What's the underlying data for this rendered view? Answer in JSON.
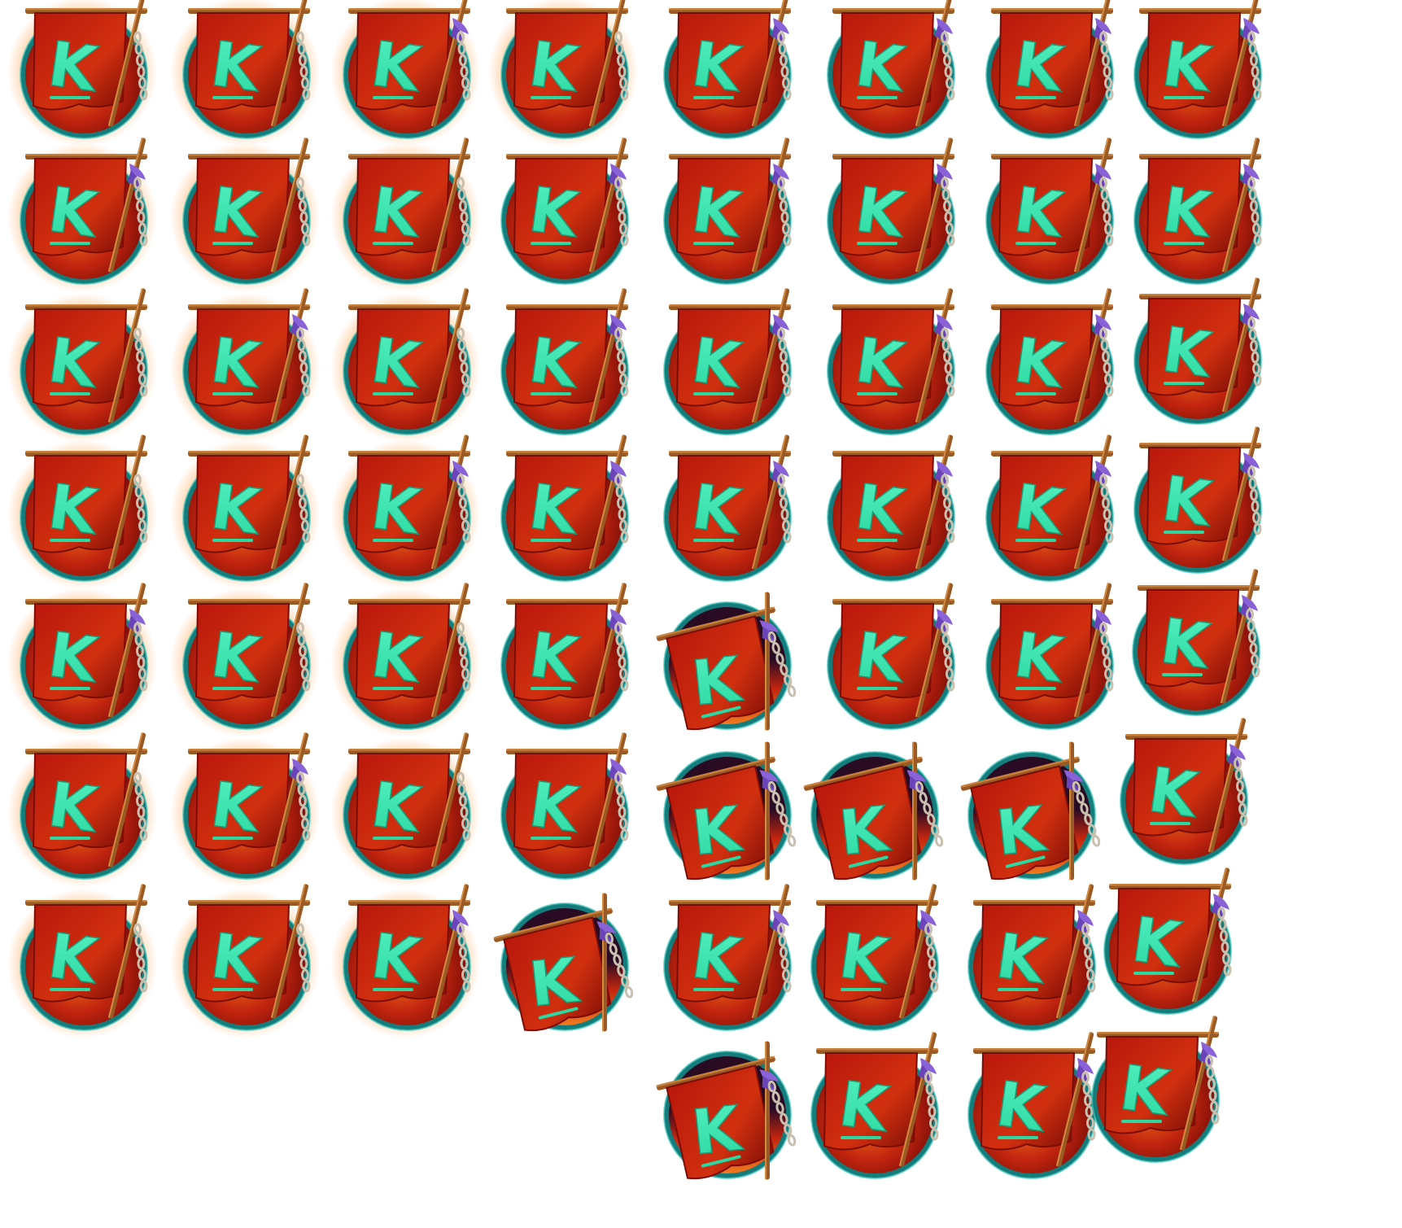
{
  "sprite_sheet": {
    "background": "#ffffff",
    "sprite": {
      "name": "k-banner-emblem-icon",
      "logo_letter": "K",
      "colors": {
        "banner_red": "#b8170c",
        "banner_dark": "#7a0d07",
        "banner_glow": "#f07a1f",
        "logo_green": "#2bd8a0",
        "logo_green_light": "#55f0c0",
        "ring_teal": "#147d7b",
        "ring_highlight": "#47c9c0",
        "backdrop_red": "#c4260f",
        "backdrop_dark": "#2a0b24",
        "pole_brown": "#9a5a25",
        "pole_light": "#d38a40",
        "chain_silver": "#c9bfae",
        "ribbon_purple": "#8a62d8",
        "aura_orange": "#ff9a3c"
      }
    },
    "animation": {
      "frame_count": 60,
      "variant_note_stages": [
        "glowing",
        "normal",
        "dark"
      ]
    }
  }
}
